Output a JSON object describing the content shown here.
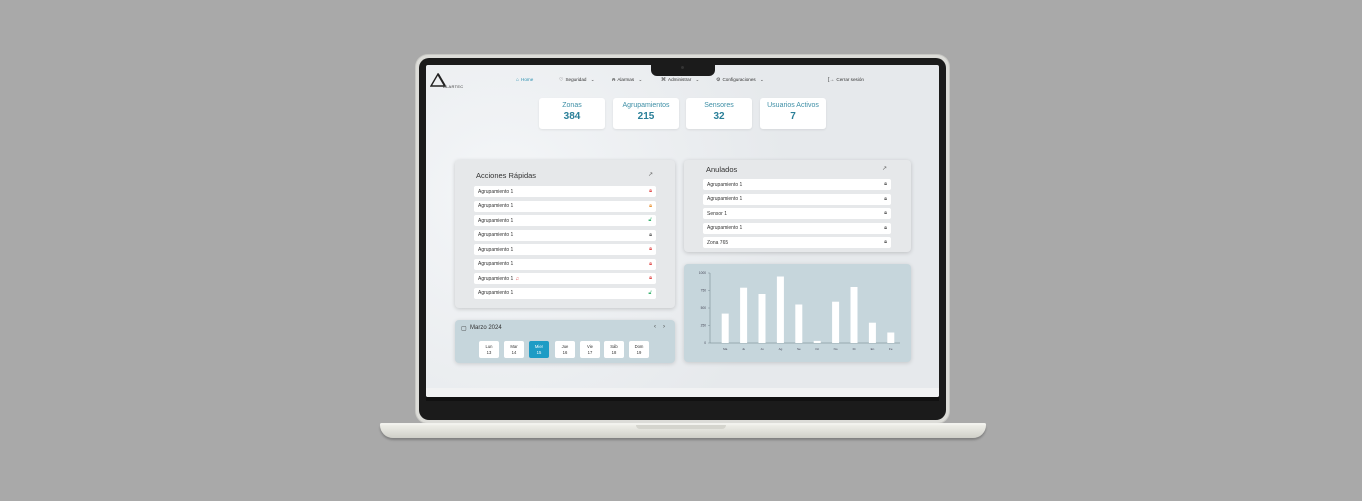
{
  "nav": {
    "logo_text": "ALARTEC",
    "items": [
      {
        "label": "Home",
        "icon": "home-icon",
        "glyph": "⌂",
        "active": true
      },
      {
        "label": "Seguridad",
        "icon": "shield-icon",
        "glyph": "♡",
        "dropdown": "⌄"
      },
      {
        "label": "Alarmas",
        "icon": "bell-icon",
        "glyph": "⍾",
        "dropdown": "⌄"
      },
      {
        "label": "Administrar",
        "icon": "hierarchy-icon",
        "glyph": "⌘",
        "dropdown": "⌄"
      },
      {
        "label": "Configuraciones",
        "icon": "gear-icon",
        "glyph": "⚙",
        "dropdown": "⌄"
      }
    ],
    "logout": {
      "label": "Cerrar sesión",
      "icon": "logout-icon",
      "glyph": "[→"
    }
  },
  "stats": [
    {
      "label": "Zonas",
      "value": "384"
    },
    {
      "label": "Agrupamientos",
      "value": "215"
    },
    {
      "label": "Sensores",
      "value": "32"
    },
    {
      "label": "Usuarios Activos",
      "value": "7"
    }
  ],
  "quick_actions": {
    "title": "Acciones Rápidas",
    "items": [
      {
        "label": "Agrupamiento 1",
        "lock_color": "red"
      },
      {
        "label": "Agrupamiento 1",
        "lock_color": "orange"
      },
      {
        "label": "Agrupamiento 1",
        "lock_color": "green"
      },
      {
        "label": "Agrupamiento 1",
        "lock_color": "gray"
      },
      {
        "label": "Agrupamiento 1",
        "lock_color": "red"
      },
      {
        "label": "Agrupamiento 1",
        "lock_color": "red"
      },
      {
        "label": "Agrupamiento 1",
        "lock_color": "red",
        "alarm": true
      },
      {
        "label": "Agrupamiento 1",
        "lock_color": "green"
      }
    ]
  },
  "anulados": {
    "title": "Anulados",
    "items": [
      {
        "label": "Agrupamiento 1"
      },
      {
        "label": "Agrupamiento 1"
      },
      {
        "label": "Sensor 1"
      },
      {
        "label": "Agrupamiento 1"
      },
      {
        "label": "Zona 765"
      }
    ]
  },
  "calendar": {
    "title": "Marzo 2024",
    "prev": "‹",
    "next": "›",
    "days": [
      {
        "name": "Lun",
        "num": "13"
      },
      {
        "name": "Mar",
        "num": "14"
      },
      {
        "name": "Mier",
        "num": "15",
        "selected": true
      },
      {
        "name": "Jue",
        "num": "16"
      },
      {
        "name": "Vie",
        "num": "17"
      },
      {
        "name": "Sáb",
        "num": "18"
      },
      {
        "name": "Dom",
        "num": "19"
      }
    ]
  },
  "chart_data": {
    "type": "bar",
    "categories": [
      "Ma",
      "Ju",
      "Ju",
      "Ag",
      "Se",
      "Oc",
      "No",
      "Di",
      "En",
      "Fe"
    ],
    "values": [
      420,
      790,
      700,
      950,
      550,
      30,
      590,
      800,
      290,
      150
    ],
    "ylim": [
      0,
      1000
    ],
    "yticks": [
      0,
      250,
      500,
      750,
      1000
    ],
    "bar_color": "#ffffff",
    "grid": false
  },
  "colors": {
    "accent": "#2a8fb0",
    "selected_day": "#1e9cc5",
    "lock_red": "#e05050",
    "lock_orange": "#e8953a",
    "lock_green": "#3cb371"
  }
}
